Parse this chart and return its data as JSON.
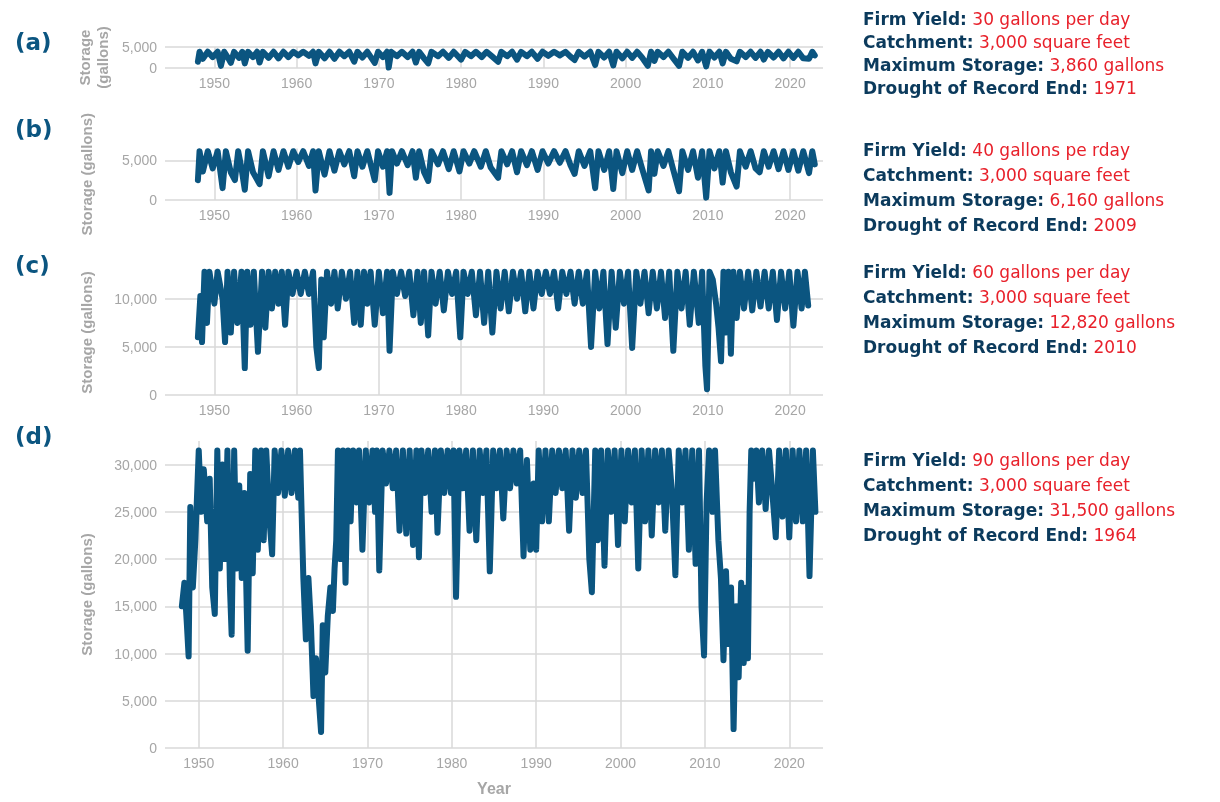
{
  "chart_data": [
    {
      "type": "line",
      "title": "(a)",
      "ylabel": "Storage (gallons)",
      "xlim": [
        1944,
        2024
      ],
      "xticks": [
        1950,
        1960,
        1970,
        1980,
        1990,
        2000,
        2010,
        2020
      ],
      "ylim": [
        0,
        5000
      ],
      "yticks": [
        {
          "value": 0,
          "label": "0"
        },
        {
          "value": 5000,
          "label": "5,000"
        }
      ],
      "grid": true,
      "color": "#0b5580",
      "x": [
        1948.0,
        1948.2,
        1948.6,
        1949.2,
        1949.8,
        1950.4,
        1950.8,
        1951.2,
        1951.7,
        1952.0,
        1952.4,
        1953.0,
        1953.4,
        1953.7,
        1954.1,
        1954.7,
        1955.2,
        1955.5,
        1955.9,
        1956.6,
        1957.2,
        1957.8,
        1958.4,
        1959.0,
        1959.6,
        1960.2,
        1960.8,
        1961.5,
        1962.0,
        1962.3,
        1962.7,
        1963.4,
        1964.0,
        1964.6,
        1965.2,
        1965.8,
        1966.4,
        1967.0,
        1967.4,
        1968.0,
        1968.6,
        1969.5,
        1969.9,
        1970.5,
        1971.0,
        1971.2,
        1971.5,
        1972.2,
        1972.8,
        1973.5,
        1974.1,
        1974.5,
        1974.9,
        1975.5,
        1976.0,
        1976.4,
        1977.2,
        1977.8,
        1978.5,
        1979.1,
        1980.0,
        1980.5,
        1981.2,
        1981.8,
        1982.5,
        1983.1,
        1983.8,
        1984.5,
        1984.9,
        1985.6,
        1986.2,
        1986.8,
        1987.3,
        1988.0,
        1988.6,
        1989.3,
        1989.9,
        1990.6,
        1991.3,
        1992.0,
        1992.7,
        1993.3,
        1993.8,
        1994.3,
        1995.0,
        1995.7,
        1996.3,
        1996.7,
        1997.4,
        1998.0,
        1998.5,
        1998.9,
        1999.6,
        2000.2,
        2000.8,
        2001.4,
        2002.0,
        2002.7,
        2003.1,
        2003.5,
        2003.9,
        2004.6,
        2005.2,
        2005.8,
        2006.5,
        2006.9,
        2007.6,
        2008.2,
        2008.8,
        2009.3,
        2009.8,
        2010.2,
        2010.8,
        2011.4,
        2011.8,
        2012.2,
        2012.8,
        2013.5,
        2013.9,
        2014.6,
        2015.2,
        2015.8,
        2016.4,
        2016.8,
        2017.3,
        2018.0,
        2018.6,
        2019.2,
        2019.8,
        2020.4,
        2021.0,
        2021.6,
        2022.3,
        2022.7,
        2023.0
      ],
      "values": [
        1500,
        3860,
        2200,
        3860,
        2600,
        3860,
        500,
        3860,
        2300,
        1200,
        3860,
        2400,
        3860,
        1100,
        3860,
        2600,
        3860,
        1300,
        3860,
        2400,
        3860,
        2300,
        3860,
        2600,
        3860,
        3000,
        3860,
        2900,
        3860,
        1100,
        3860,
        2300,
        3860,
        2200,
        3860,
        2800,
        3860,
        1500,
        3860,
        2500,
        3860,
        1200,
        3860,
        2600,
        3860,
        100,
        3860,
        2800,
        3860,
        2600,
        3860,
        1300,
        3860,
        2300,
        1100,
        3860,
        2800,
        3860,
        2400,
        3860,
        2000,
        3860,
        2800,
        3860,
        2600,
        3860,
        2700,
        1500,
        3860,
        2800,
        3860,
        2000,
        3860,
        2800,
        3860,
        2200,
        3860,
        2900,
        3860,
        3000,
        3860,
        2700,
        1900,
        3860,
        2700,
        3860,
        700,
        3860,
        2500,
        3860,
        600,
        3860,
        2300,
        3860,
        2400,
        3860,
        2500,
        500,
        3860,
        1700,
        3860,
        2600,
        3860,
        2300,
        500,
        3860,
        2400,
        3860,
        1800,
        3860,
        400,
        3860,
        2500,
        3860,
        1100,
        3860,
        2200,
        1600,
        3860,
        2600,
        3860,
        2400,
        3860,
        2000,
        3860,
        2500,
        3860,
        2300,
        3860,
        2400,
        3860,
        2300,
        2200,
        3860,
        3000
      ],
      "annotations": [
        "Firm Yield: 30 gallons per day",
        "Catchment: 3,000 square feet",
        "Maximum Storage: 3,860 gallons",
        "Drought of Record End: 1971"
      ]
    },
    {
      "type": "line",
      "title": "(b)",
      "ylabel": "Storage (gallons)",
      "xlim": [
        1944,
        2024
      ],
      "xticks": [
        1950,
        1960,
        1970,
        1980,
        1990,
        2000,
        2010,
        2020
      ],
      "ylim": [
        0,
        6500
      ],
      "yticks": [
        {
          "value": 0,
          "label": "0"
        },
        {
          "value": 5000,
          "label": "5,000"
        }
      ],
      "grid": true,
      "color": "#0b5580",
      "x": [
        1948.0,
        1948.2,
        1948.6,
        1949.2,
        1949.8,
        1950.4,
        1951.0,
        1951.4,
        1952.0,
        1952.5,
        1952.9,
        1953.3,
        1953.7,
        1954.1,
        1954.7,
        1955.5,
        1955.9,
        1956.6,
        1957.2,
        1957.8,
        1958.4,
        1959.0,
        1959.6,
        1960.2,
        1960.8,
        1961.5,
        1962.0,
        1962.3,
        1962.7,
        1963.4,
        1964.0,
        1964.6,
        1965.2,
        1965.8,
        1966.4,
        1967.0,
        1967.4,
        1968.0,
        1968.6,
        1969.5,
        1969.9,
        1970.5,
        1971.0,
        1971.3,
        1971.6,
        1972.2,
        1972.8,
        1973.5,
        1974.1,
        1974.5,
        1974.9,
        1975.5,
        1976.0,
        1976.4,
        1977.2,
        1977.8,
        1978.5,
        1979.1,
        1979.8,
        1980.3,
        1981.0,
        1981.6,
        1982.4,
        1983.0,
        1983.6,
        1984.5,
        1984.9,
        1985.6,
        1986.2,
        1986.8,
        1987.3,
        1988.0,
        1988.6,
        1989.3,
        1989.9,
        1990.6,
        1991.3,
        1992.0,
        1992.7,
        1993.3,
        1993.8,
        1994.3,
        1995.0,
        1995.7,
        1996.3,
        1996.7,
        1997.4,
        1998.0,
        1998.5,
        1998.9,
        1999.6,
        2000.2,
        2000.8,
        2001.4,
        2002.0,
        2002.8,
        2003.1,
        2003.5,
        2003.9,
        2004.6,
        2005.2,
        2005.8,
        2006.5,
        2006.9,
        2007.6,
        2008.2,
        2008.8,
        2009.3,
        2009.8,
        2010.2,
        2010.8,
        2011.4,
        2011.8,
        2012.2,
        2012.8,
        2013.5,
        2013.9,
        2014.6,
        2015.2,
        2015.8,
        2016.3,
        2016.8,
        2017.4,
        2018.0,
        2018.6,
        2019.2,
        2019.8,
        2020.4,
        2021.0,
        2021.6,
        2022.3,
        2022.7,
        2023.0
      ],
      "values": [
        2500,
        6160,
        3600,
        6160,
        4000,
        6160,
        1500,
        6160,
        3500,
        2500,
        6160,
        4000,
        1300,
        6160,
        3500,
        2000,
        6160,
        3000,
        6160,
        3800,
        6160,
        4200,
        6160,
        4800,
        6160,
        4300,
        6160,
        1200,
        6160,
        3200,
        6160,
        3700,
        6160,
        4500,
        6160,
        3000,
        6160,
        4200,
        6160,
        2500,
        6160,
        4200,
        6160,
        900,
        6160,
        4600,
        6160,
        4400,
        6160,
        2800,
        6160,
        3500,
        2400,
        6160,
        4500,
        6160,
        3900,
        6160,
        3600,
        6160,
        4600,
        6160,
        4200,
        6160,
        4100,
        2800,
        6160,
        4500,
        6160,
        3500,
        6160,
        4400,
        6160,
        3800,
        6160,
        4600,
        6160,
        4700,
        6160,
        4400,
        3300,
        6160,
        4300,
        6160,
        1500,
        6160,
        3800,
        6160,
        1400,
        6160,
        3400,
        6160,
        3800,
        6160,
        4000,
        1200,
        6160,
        3300,
        6160,
        4300,
        6160,
        3800,
        1100,
        6160,
        3800,
        6160,
        2800,
        6160,
        300,
        6160,
        4000,
        6160,
        2200,
        6160,
        3500,
        1700,
        6160,
        4200,
        6160,
        4000,
        3500,
        6160,
        4200,
        6160,
        3900,
        6160,
        3800,
        6160,
        3700,
        6160,
        3400,
        6160,
        4500
      ],
      "annotations": [
        "Firm Yield: 40 gallons pe rday",
        "Catchment: 3,000 square feet",
        "Maximum Storage: 6,160 gallons",
        "Drought of Record End: 2009"
      ]
    },
    {
      "type": "line",
      "title": "(c)",
      "ylabel": "Storage (gallons)",
      "xlim": [
        1944,
        2024
      ],
      "xticks": [
        1950,
        1960,
        1970,
        1980,
        1990,
        2000,
        2010,
        2020
      ],
      "ylim": [
        0,
        13000
      ],
      "yticks": [
        {
          "value": 0,
          "label": "0"
        },
        {
          "value": 5000,
          "label": "5,000"
        },
        {
          "value": 10000,
          "label": "10,000"
        }
      ],
      "grid": true,
      "color": "#0b5580",
      "x": [
        1948.0,
        1948.3,
        1948.5,
        1948.8,
        1949.1,
        1949.4,
        1950.0,
        1950.4,
        1951.0,
        1951.3,
        1951.6,
        1952.0,
        1952.4,
        1952.8,
        1953.3,
        1953.7,
        1954.0,
        1954.4,
        1954.8,
        1955.3,
        1955.8,
        1956.2,
        1956.6,
        1957.0,
        1957.4,
        1957.8,
        1958.2,
        1958.6,
        1959.0,
        1959.5,
        1960.0,
        1960.5,
        1961.0,
        1961.5,
        1962.0,
        1962.4,
        1962.7,
        1963.0,
        1963.3,
        1963.7,
        1964.2,
        1964.6,
        1965.0,
        1965.5,
        1966.0,
        1966.5,
        1967.0,
        1967.4,
        1967.8,
        1968.2,
        1968.6,
        1969.0,
        1969.5,
        1970.0,
        1970.5,
        1971.0,
        1971.3,
        1971.7,
        1972.2,
        1972.7,
        1973.2,
        1973.7,
        1974.2,
        1974.7,
        1975.1,
        1975.5,
        1976.0,
        1976.4,
        1976.9,
        1977.4,
        1977.9,
        1978.4,
        1978.9,
        1979.4,
        1979.9,
        1980.3,
        1980.8,
        1981.3,
        1981.8,
        1982.3,
        1982.8,
        1983.3,
        1983.8,
        1984.3,
        1984.8,
        1985.3,
        1985.8,
        1986.3,
        1986.8,
        1987.3,
        1987.8,
        1988.3,
        1988.8,
        1989.3,
        1989.8,
        1990.3,
        1990.8,
        1991.3,
        1991.8,
        1992.3,
        1992.8,
        1993.3,
        1993.8,
        1994.3,
        1994.8,
        1995.3,
        1995.8,
        1996.3,
        1996.8,
        1997.3,
        1997.8,
        1998.3,
        1998.8,
        1999.3,
        1999.8,
        2000.3,
        2000.8,
        2001.3,
        2001.8,
        2002.3,
        2002.8,
        2003.3,
        2003.8,
        2004.3,
        2004.8,
        2005.3,
        2005.8,
        2006.3,
        2006.8,
        2007.3,
        2007.8,
        2008.3,
        2008.9,
        2009.3,
        2009.7,
        2009.9,
        2010.2,
        2010.6,
        2011.0,
        2011.3,
        2011.6,
        2011.9,
        2012.2,
        2012.5,
        2012.8,
        2013.1,
        2013.5,
        2013.9,
        2014.4,
        2014.9,
        2015.4,
        2015.9,
        2016.4,
        2016.9,
        2017.4,
        2017.9,
        2018.4,
        2018.9,
        2019.4,
        2019.9,
        2020.4,
        2020.9,
        2021.4,
        2021.8,
        2022.2
      ],
      "values": [
        6000,
        10300,
        5500,
        12820,
        7500,
        12820,
        9500,
        12820,
        10000,
        5500,
        12820,
        6500,
        12820,
        7500,
        12820,
        2800,
        12820,
        7300,
        12820,
        4500,
        12820,
        7000,
        12820,
        9000,
        12820,
        9500,
        12820,
        7300,
        12820,
        10500,
        12820,
        10500,
        12820,
        10500,
        12820,
        5000,
        2800,
        12000,
        6000,
        12820,
        9500,
        12820,
        9000,
        12820,
        10000,
        12820,
        7500,
        12820,
        7300,
        12820,
        9500,
        12820,
        7300,
        12820,
        8500,
        12820,
        4600,
        12820,
        10500,
        12820,
        10300,
        12820,
        8300,
        12820,
        7500,
        12820,
        6200,
        12820,
        9500,
        12820,
        8800,
        12820,
        10500,
        12820,
        6000,
        12820,
        10500,
        12820,
        8300,
        12820,
        7500,
        12820,
        6500,
        12820,
        9000,
        12820,
        8700,
        12820,
        10000,
        12820,
        8700,
        12820,
        9000,
        12820,
        10500,
        12820,
        10500,
        12820,
        9000,
        12820,
        10500,
        12820,
        9500,
        12820,
        9500,
        12820,
        5000,
        12820,
        9000,
        12820,
        5300,
        12820,
        7000,
        12820,
        9500,
        12820,
        4900,
        12820,
        9500,
        12820,
        8500,
        12820,
        9000,
        12820,
        8000,
        12820,
        4600,
        12820,
        9000,
        12820,
        7300,
        12820,
        7500,
        12820,
        3000,
        600,
        12820,
        12000,
        9500,
        7000,
        3500,
        12820,
        6500,
        12820,
        4300,
        12820,
        8000,
        12820,
        9000,
        12820,
        8800,
        12820,
        9200,
        12820,
        9000,
        12820,
        7800,
        12820,
        9000,
        12820,
        7200,
        12820,
        9000,
        12820,
        9300
      ],
      "annotations": [
        "Firm Yield: 60 gallons per day",
        "Catchment: 3,000 square feet",
        "Maximum Storage: 12,820 gallons",
        "Drought of Record End: 2010"
      ]
    },
    {
      "type": "line",
      "title": "(d)",
      "ylabel": "Storage (gallons)",
      "xlabel": "Year",
      "xlim": [
        1946,
        2024
      ],
      "xticks": [
        1950,
        1960,
        1970,
        1980,
        1990,
        2000,
        2010,
        2020
      ],
      "ylim": [
        0,
        32500
      ],
      "yticks": [
        {
          "value": 0,
          "label": "0"
        },
        {
          "value": 5000,
          "label": "5,000"
        },
        {
          "value": 10000,
          "label": "10,000"
        },
        {
          "value": 15000,
          "label": "15,000"
        },
        {
          "value": 20000,
          "label": "20,000"
        },
        {
          "value": 25000,
          "label": "25,000"
        },
        {
          "value": 30000,
          "label": "30,000"
        }
      ],
      "grid": true,
      "color": "#0b5580",
      "x": [
        1948.0,
        1948.3,
        1948.6,
        1948.8,
        1949.0,
        1949.3,
        1949.6,
        1950.0,
        1950.3,
        1950.6,
        1951.0,
        1951.3,
        1951.6,
        1951.9,
        1952.2,
        1952.5,
        1952.8,
        1953.1,
        1953.4,
        1953.7,
        1953.9,
        1954.2,
        1954.5,
        1954.8,
        1955.1,
        1955.4,
        1955.8,
        1956.1,
        1956.4,
        1956.7,
        1957.0,
        1957.4,
        1957.7,
        1958.0,
        1958.4,
        1958.7,
        1959.0,
        1959.4,
        1959.8,
        1960.2,
        1960.6,
        1961.0,
        1961.4,
        1961.8,
        1962.0,
        1962.4,
        1962.7,
        1963.0,
        1963.3,
        1963.6,
        1963.9,
        1964.2,
        1964.5,
        1964.7,
        1965.0,
        1965.3,
        1965.6,
        1965.9,
        1966.1,
        1966.3,
        1966.5,
        1966.8,
        1967.1,
        1967.4,
        1967.7,
        1968.0,
        1968.3,
        1968.7,
        1969.0,
        1969.4,
        1969.8,
        1970.2,
        1970.6,
        1970.9,
        1971.1,
        1971.4,
        1971.8,
        1972.2,
        1972.6,
        1973.0,
        1973.4,
        1973.8,
        1974.2,
        1974.6,
        1975.0,
        1975.4,
        1975.8,
        1976.1,
        1976.4,
        1976.8,
        1977.2,
        1977.6,
        1978.0,
        1978.3,
        1978.7,
        1979.1,
        1979.5,
        1979.9,
        1980.2,
        1980.5,
        1980.9,
        1981.3,
        1981.7,
        1982.1,
        1982.5,
        1982.9,
        1983.3,
        1983.7,
        1984.1,
        1984.5,
        1984.9,
        1985.3,
        1985.7,
        1986.1,
        1986.5,
        1986.9,
        1987.3,
        1987.7,
        1988.1,
        1988.5,
        1988.9,
        1989.3,
        1989.7,
        1990.0,
        1990.3,
        1990.7,
        1991.1,
        1991.5,
        1991.9,
        1992.3,
        1992.7,
        1993.1,
        1993.5,
        1993.9,
        1994.3,
        1994.7,
        1995.1,
        1995.5,
        1995.9,
        1996.3,
        1996.6,
        1997.0,
        1997.3,
        1997.7,
        1998.1,
        1998.5,
        1998.9,
        1999.3,
        1999.7,
        2000.1,
        2000.5,
        2000.9,
        2001.3,
        2001.7,
        2002.1,
        2002.5,
        2002.9,
        2003.3,
        2003.7,
        2004.1,
        2004.5,
        2004.9,
        2005.3,
        2005.7,
        2006.1,
        2006.5,
        2006.9,
        2007.3,
        2007.7,
        2008.1,
        2008.5,
        2008.9,
        2009.3,
        2009.6,
        2009.9,
        2010.2,
        2010.5,
        2010.9,
        2011.2,
        2011.6,
        2011.9,
        2012.2,
        2012.5,
        2012.8,
        2013.1,
        2013.4,
        2013.7,
        2014.0,
        2014.3,
        2014.6,
        2014.9,
        2015.1,
        2015.3,
        2015.5,
        2015.8,
        2016.1,
        2016.4,
        2016.8,
        2017.2,
        2017.6,
        2018.0,
        2018.4,
        2018.8,
        2019.2,
        2019.6,
        2020.0,
        2020.4,
        2020.8,
        2021.2,
        2021.6,
        2022.0,
        2022.4,
        2022.8,
        2023.1
      ],
      "values": [
        15000,
        17500,
        13000,
        9700,
        25500,
        17000,
        22000,
        31500,
        25000,
        29500,
        24000,
        28500,
        17000,
        14200,
        31500,
        19000,
        30000,
        20000,
        31500,
        17000,
        12000,
        31500,
        19000,
        27800,
        18000,
        27000,
        10300,
        29000,
        18500,
        31500,
        21000,
        31500,
        22000,
        31500,
        24000,
        20500,
        31500,
        27000,
        31500,
        26700,
        31500,
        27000,
        31500,
        26500,
        31500,
        18000,
        11500,
        18000,
        13000,
        5500,
        9500,
        5500,
        1700,
        13000,
        8000,
        14000,
        17000,
        14500,
        19000,
        22000,
        31500,
        20000,
        31500,
        17500,
        31500,
        24000,
        31500,
        26000,
        31500,
        21000,
        31500,
        26000,
        31500,
        25000,
        31500,
        18800,
        31500,
        28000,
        31500,
        27500,
        31500,
        23000,
        31500,
        22700,
        31500,
        21500,
        31500,
        20200,
        31500,
        27000,
        31500,
        25000,
        31500,
        22800,
        31500,
        27000,
        31500,
        27000,
        31500,
        16000,
        31500,
        27500,
        31500,
        23000,
        31500,
        22000,
        31500,
        27000,
        31500,
        18700,
        31500,
        27500,
        31500,
        24300,
        31500,
        27500,
        31500,
        28000,
        31500,
        20300,
        30500,
        21000,
        28000,
        21000,
        31500,
        24000,
        31500,
        24000,
        31500,
        27000,
        31500,
        27500,
        31500,
        23000,
        31500,
        26500,
        31500,
        27000,
        31500,
        20000,
        16500,
        31500,
        22000,
        31500,
        19300,
        31500,
        25000,
        31500,
        21500,
        31500,
        24000,
        31500,
        26000,
        31500,
        19000,
        31500,
        24000,
        31500,
        22500,
        31500,
        26000,
        31500,
        23000,
        31500,
        27000,
        18300,
        31500,
        26000,
        31500,
        21000,
        31500,
        19500,
        31500,
        15000,
        9800,
        26000,
        31500,
        25000,
        31500,
        22000,
        18000,
        9300,
        18700,
        11000,
        17000,
        2000,
        15000,
        7500,
        17500,
        9000,
        17000,
        9500,
        25000,
        31500,
        28500,
        31500,
        26000,
        31500,
        25300,
        31500,
        27000,
        22300,
        31500,
        24500,
        31500,
        22300,
        31500,
        24000,
        31500,
        24000,
        31500,
        18200,
        31500,
        25000
      ],
      "annotations": [
        "Firm Yield: 90 gallons per day",
        "Catchment: 3,000 square feet",
        "Maximum Storage: 31,500 gallons",
        "Drought of Record End: 1964"
      ]
    }
  ]
}
